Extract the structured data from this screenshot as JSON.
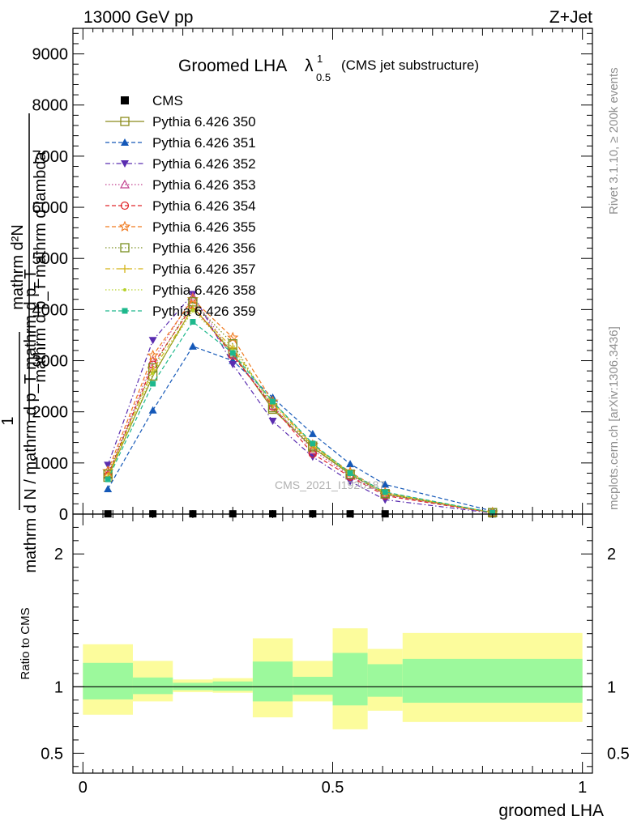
{
  "header": {
    "left": "13000 GeV pp",
    "right": "Z+Jet"
  },
  "plot_title": {
    "main": "Groomed LHA",
    "lambda": "λ",
    "sup": "1",
    "sub": "0.5",
    "suffix": "(CMS jet substructure)"
  },
  "side_labels": {
    "rivet": "Rivet 3.1.10, ≥ 200k events",
    "mcplots": "mcplots.cern.ch [arXiv:1306.3436]"
  },
  "watermark": "CMS_2021_I1920187",
  "ylabel_main": {
    "frac1_num": "mathrm d²N",
    "frac1_den": "mathrm d p_T mathrm d lambda",
    "frac2_num": "1",
    "frac2_den": "mathrm d N / mathrm d p_T mathrm d p_T"
  },
  "ylabel_ratio": "Ratio to CMS",
  "xlabel": "groomed LHA",
  "chart_data": [
    {
      "type": "line",
      "title": "Groomed LHA λ^1_0.5 (CMS jet substructure)",
      "xlim": [
        -0.02,
        1.02
      ],
      "ylim": [
        0,
        9500
      ],
      "x_ticks": [
        0,
        0.5,
        1
      ],
      "x_tick_labels": [
        "0",
        "0.5",
        "1"
      ],
      "y_ticks": [
        0,
        1000,
        2000,
        3000,
        4000,
        5000,
        6000,
        7000,
        8000,
        9000
      ],
      "y_tick_labels": [
        "0",
        "1000",
        "2000",
        "3000",
        "4000",
        "5000",
        "6000",
        "7000",
        "8000",
        "9000"
      ],
      "x": [
        0.05,
        0.14,
        0.22,
        0.3,
        0.38,
        0.46,
        0.535,
        0.605,
        0.82
      ],
      "series": [
        {
          "name": "CMS",
          "color": "#000000",
          "marker": "square-filled",
          "dash": "none",
          "values": [
            5,
            5,
            5,
            5,
            5,
            5,
            5,
            5,
            5
          ]
        },
        {
          "name": "Pythia 6.426 350",
          "color": "#8b8b1a",
          "marker": "square-open",
          "dash": "solid",
          "values": [
            720,
            2700,
            4050,
            3150,
            2050,
            1300,
            780,
            390,
            30
          ]
        },
        {
          "name": "Pythia 6.426 351",
          "color": "#1458b8",
          "marker": "triangle-up-filled",
          "dash": "dashed",
          "values": [
            490,
            2030,
            3280,
            3000,
            2280,
            1570,
            980,
            580,
            60
          ]
        },
        {
          "name": "Pythia 6.426 352",
          "color": "#5a2db0",
          "marker": "triangle-down-filled",
          "dash": "dashdot",
          "values": [
            960,
            3400,
            4300,
            2930,
            1820,
            1120,
            640,
            280,
            20
          ]
        },
        {
          "name": "Pythia 6.426 353",
          "color": "#c2428f",
          "marker": "triangle-up-open",
          "dash": "dotted",
          "values": [
            780,
            3000,
            4250,
            3120,
            2120,
            1250,
            750,
            380,
            25
          ]
        },
        {
          "name": "Pythia 6.426 354",
          "color": "#e0262b",
          "marker": "circle-open",
          "dash": "dashed",
          "values": [
            750,
            2920,
            4080,
            3100,
            2100,
            1180,
            730,
            360,
            25
          ]
        },
        {
          "name": "Pythia 6.426 355",
          "color": "#f07a1e",
          "marker": "star-open",
          "dash": "dashed",
          "values": [
            840,
            3100,
            4200,
            3450,
            2200,
            1350,
            820,
            420,
            30
          ]
        },
        {
          "name": "Pythia 6.426 356",
          "color": "#7a8f1f",
          "marker": "square-open",
          "dash": "dotted",
          "values": [
            780,
            2860,
            4150,
            3330,
            2080,
            1330,
            780,
            400,
            28
          ]
        },
        {
          "name": "Pythia 6.426 357",
          "color": "#d4b416",
          "marker": "cross",
          "dash": "dashdot",
          "values": [
            740,
            2820,
            4020,
            3250,
            2150,
            1340,
            800,
            410,
            30
          ]
        },
        {
          "name": "Pythia 6.426 358",
          "color": "#b6d12b",
          "marker": "dot",
          "dash": "dotted",
          "values": [
            700,
            2750,
            3980,
            3200,
            2180,
            1360,
            790,
            400,
            30
          ]
        },
        {
          "name": "Pythia 6.426 359",
          "color": "#1eb88c",
          "marker": "square-filled-small",
          "dash": "dashed",
          "values": [
            680,
            2550,
            3760,
            3150,
            2200,
            1380,
            800,
            430,
            30
          ]
        }
      ]
    },
    {
      "type": "area",
      "title": "Ratio to CMS",
      "xlim": [
        -0.02,
        1.02
      ],
      "ylim": [
        0.35,
        2.3
      ],
      "y_ticks": [
        0.5,
        1,
        2
      ],
      "y_tick_labels": [
        "0.5",
        "1",
        "2"
      ],
      "reference_line": 1,
      "bins": [
        {
          "x0": 0.0,
          "x1": 0.1,
          "stat_lo": 0.905,
          "stat_hi": 1.18,
          "tot_lo": 0.79,
          "tot_hi": 1.32
        },
        {
          "x0": 0.1,
          "x1": 0.18,
          "stat_lo": 0.945,
          "stat_hi": 1.07,
          "tot_lo": 0.89,
          "tot_hi": 1.195
        },
        {
          "x0": 0.18,
          "x1": 0.26,
          "stat_lo": 0.975,
          "stat_hi": 1.03,
          "tot_lo": 0.96,
          "tot_hi": 1.055
        },
        {
          "x0": 0.26,
          "x1": 0.34,
          "stat_lo": 0.97,
          "stat_hi": 1.04,
          "tot_lo": 0.955,
          "tot_hi": 1.065
        },
        {
          "x0": 0.34,
          "x1": 0.42,
          "stat_lo": 0.89,
          "stat_hi": 1.19,
          "tot_lo": 0.77,
          "tot_hi": 1.365
        },
        {
          "x0": 0.42,
          "x1": 0.5,
          "stat_lo": 0.94,
          "stat_hi": 1.075,
          "tot_lo": 0.89,
          "tot_hi": 1.195
        },
        {
          "x0": 0.5,
          "x1": 0.57,
          "stat_lo": 0.86,
          "stat_hi": 1.255,
          "tot_lo": 0.68,
          "tot_hi": 1.44
        },
        {
          "x0": 0.57,
          "x1": 0.64,
          "stat_lo": 0.925,
          "stat_hi": 1.17,
          "tot_lo": 0.82,
          "tot_hi": 1.285
        },
        {
          "x0": 0.64,
          "x1": 1.0,
          "stat_lo": 0.88,
          "stat_hi": 1.21,
          "tot_lo": 0.735,
          "tot_hi": 1.405
        }
      ],
      "stat_color": "#9cf99c",
      "tot_color": "#fcfc9c"
    }
  ]
}
